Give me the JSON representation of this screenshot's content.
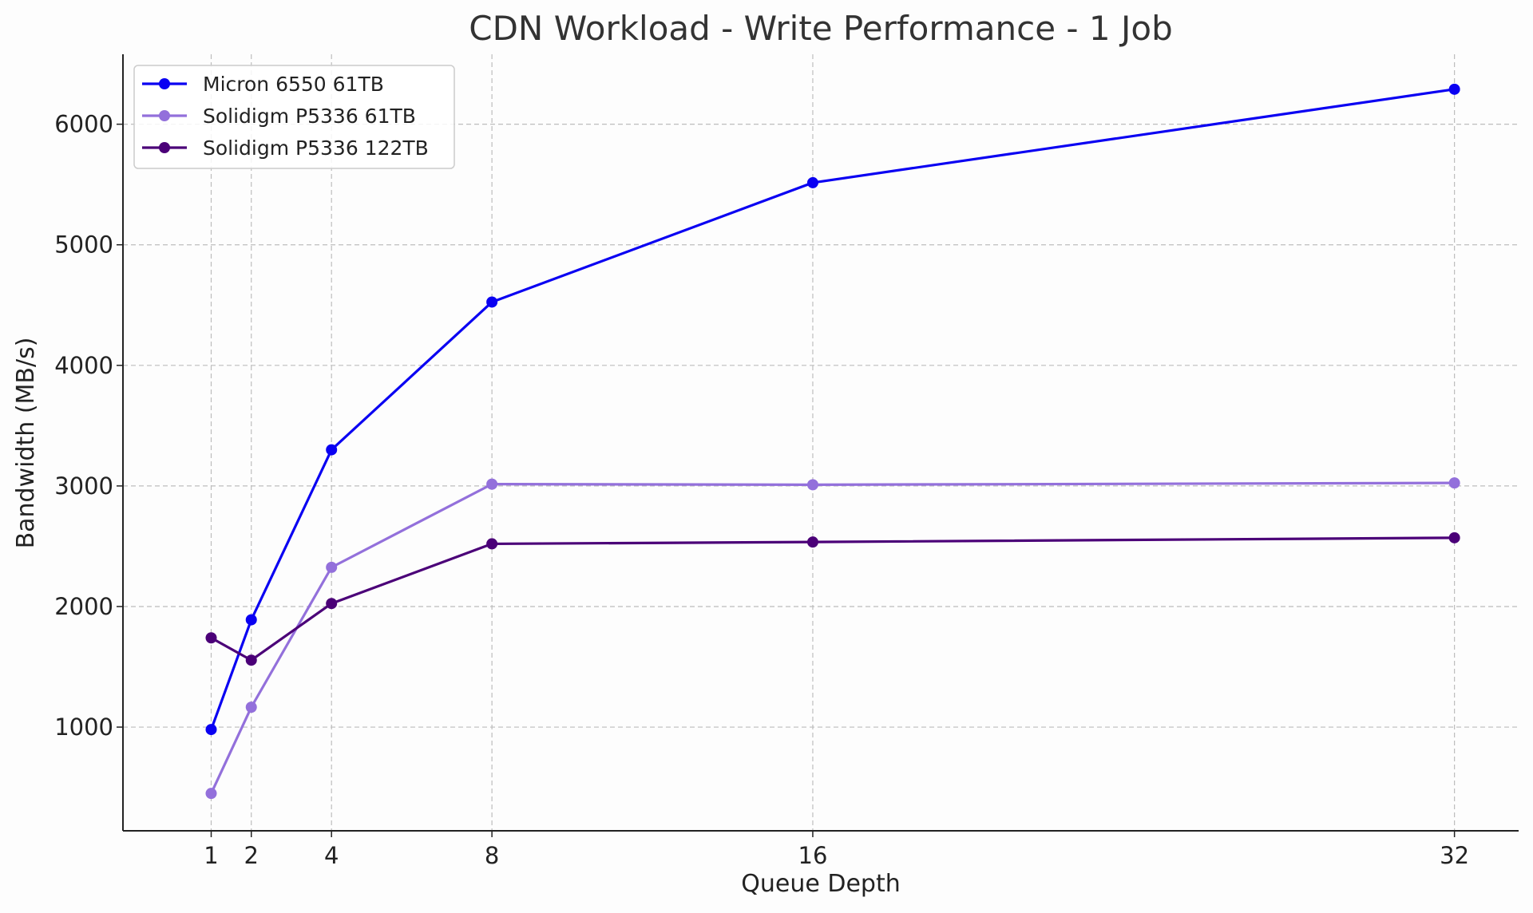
{
  "chart_data": {
    "type": "line",
    "title": "CDN Workload - Write Performance - 1 Job",
    "xlabel": "Queue Depth",
    "ylabel": "Bandwidth (MB/s)",
    "x": [
      1,
      2,
      4,
      8,
      16,
      32
    ],
    "xlim": [
      -1.2,
      33.6
    ],
    "ylim": [
      140,
      6580
    ],
    "xticks": [
      1,
      2,
      4,
      8,
      16,
      32
    ],
    "yticks": [
      1000,
      2000,
      3000,
      4000,
      5000,
      6000
    ],
    "grid": true,
    "legend_position": "top-left",
    "series": [
      {
        "name": "Micron 6550 61TB",
        "color": "#0a00f2",
        "values": [
          980,
          1890,
          3300,
          4525,
          5515,
          6290
        ]
      },
      {
        "name": "Solidigm P5336 61TB",
        "color": "#9370db",
        "values": [
          450,
          1165,
          2325,
          3015,
          3010,
          3025
        ]
      },
      {
        "name": "Solidigm P5336 122TB",
        "color": "#4b0078",
        "values": [
          1740,
          1555,
          2025,
          2520,
          2535,
          2570
        ]
      }
    ]
  }
}
